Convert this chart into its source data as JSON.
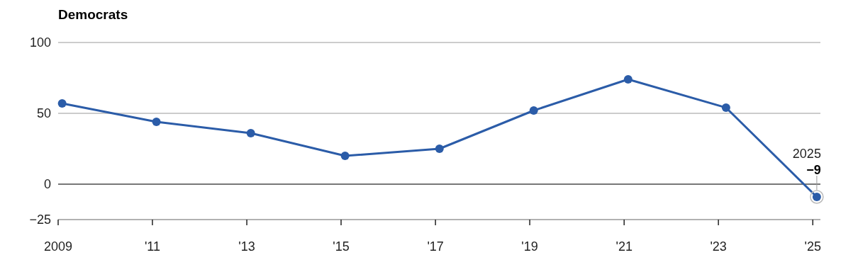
{
  "chart_data": {
    "type": "line",
    "title": "Democrats",
    "x": [
      "2009-02",
      "2011-02",
      "2013-02",
      "2015-02",
      "2017-02",
      "2019-02",
      "2021-02",
      "2023-03",
      "2025-02"
    ],
    "series": [
      {
        "color": "#2b5ca8",
        "values": [
          57,
          44,
          36,
          20,
          25,
          52,
          74,
          54,
          -9
        ],
        "value_labels": [
          null,
          null,
          null,
          null,
          null,
          null,
          null,
          null,
          "−9"
        ]
      }
    ],
    "xlim": [
      "2009-01",
      "2025-03"
    ],
    "xticks": [
      {
        "value": "2009",
        "label": "2009"
      },
      {
        "value": "2011",
        "label": "'11"
      },
      {
        "value": "2013",
        "label": "'13"
      },
      {
        "value": "2015",
        "label": "'15"
      },
      {
        "value": "2017",
        "label": "'17"
      },
      {
        "value": "2019",
        "label": "'19"
      },
      {
        "value": "2021",
        "label": "'21"
      },
      {
        "value": "2023",
        "label": "'23"
      },
      {
        "value": "2025",
        "label": "'25"
      }
    ],
    "ylim": [
      -25,
      100
    ],
    "yticks": [
      {
        "value": -25,
        "label": "−25"
      },
      0,
      50,
      100
    ],
    "grid": "y",
    "marker": "circle",
    "line_style": "solid",
    "ref_lines": [
      {
        "axis": "y",
        "value": 0,
        "color": "#222222"
      }
    ],
    "annotations": [
      {
        "text": "2025",
        "x": "2025-02",
        "y": -9
      }
    ]
  }
}
